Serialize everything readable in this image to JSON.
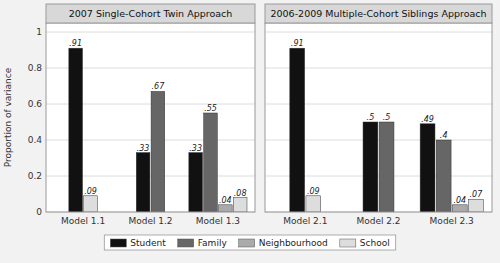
{
  "chart_data": [
    {
      "type": "bar",
      "title": "2007 Single-Cohort Twin Approach",
      "ylabel": "Proportion of variance",
      "categories": [
        "Model 1.1",
        "Model 1.2",
        "Model 1.3"
      ],
      "series": [
        {
          "name": "Student",
          "color": "#111111",
          "values": [
            0.91,
            0.33,
            0.33
          ],
          "value_labels": [
            ".91",
            ".33",
            ".33"
          ]
        },
        {
          "name": "Family",
          "color": "#666666",
          "values": [
            null,
            0.67,
            0.55
          ],
          "value_labels": [
            null,
            ".67",
            ".55"
          ]
        },
        {
          "name": "Neighbourhood",
          "color": "#aaaaaa",
          "values": [
            null,
            null,
            0.04
          ],
          "value_labels": [
            null,
            null,
            ".04"
          ]
        },
        {
          "name": "School",
          "color": "#dddddd",
          "values": [
            0.09,
            null,
            0.08
          ],
          "value_labels": [
            ".09",
            null,
            ".08"
          ]
        }
      ],
      "ylim": [
        0,
        1.05
      ],
      "yticks": [
        0.0,
        0.2,
        0.4,
        0.6,
        0.8,
        1.0
      ],
      "grid": true,
      "data_labels": true,
      "legend": "bottom"
    },
    {
      "type": "bar",
      "title": "2006-2009 Multiple-Cohort Siblings Approach",
      "categories": [
        "Model 2.1",
        "Model 2.2",
        "Model 2.3"
      ],
      "series": [
        {
          "name": "Student",
          "color": "#111111",
          "values": [
            0.91,
            0.5,
            0.49
          ],
          "value_labels": [
            ".91",
            ".5",
            ".49"
          ]
        },
        {
          "name": "Family",
          "color": "#666666",
          "values": [
            null,
            0.5,
            0.4
          ],
          "value_labels": [
            null,
            ".5",
            ".4"
          ]
        },
        {
          "name": "Neighbourhood",
          "color": "#aaaaaa",
          "values": [
            null,
            null,
            0.04
          ],
          "value_labels": [
            null,
            null,
            ".04"
          ]
        },
        {
          "name": "School",
          "color": "#dddddd",
          "values": [
            0.09,
            null,
            0.07
          ],
          "value_labels": [
            ".09",
            null,
            ".07"
          ]
        }
      ],
      "ylim": [
        0,
        1.05
      ],
      "yticks": [
        0.0,
        0.2,
        0.4,
        0.6,
        0.8,
        1.0
      ],
      "grid": true,
      "data_labels": true,
      "tick_labels": "x"
    }
  ]
}
